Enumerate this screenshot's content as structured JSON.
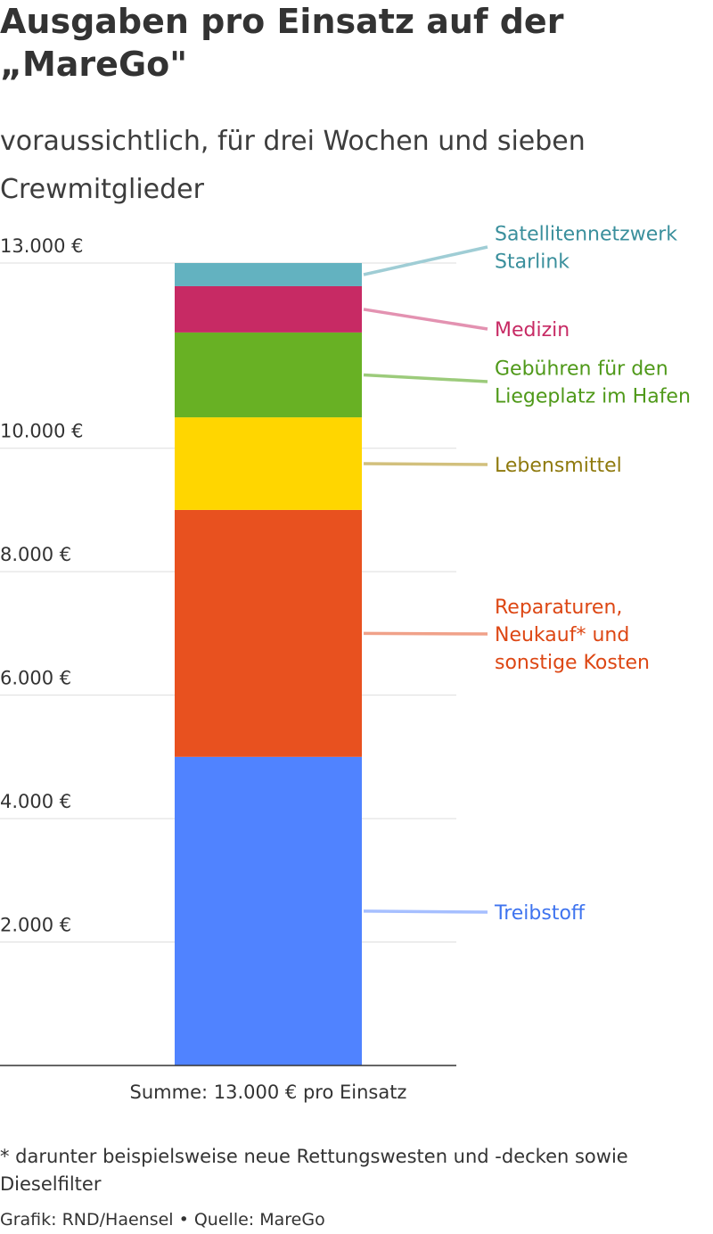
{
  "title_lines": [
    "Ausgaben pro Einsatz auf der",
    "„MareGo\""
  ],
  "subtitle": "voraussichtlich, für drei Wochen und sieben Crewmitglieder",
  "chart_data": {
    "type": "bar",
    "stacked": true,
    "categories": [
      "Summe: 13.000 € pro Einsatz"
    ],
    "ylim": [
      0,
      13000
    ],
    "y_ticks": [
      2000,
      4000,
      6000,
      8000,
      10000,
      13000
    ],
    "y_tick_labels": [
      "2.000 €",
      "4.000 €",
      "6.000 €",
      "8.000 €",
      "10.000 €",
      "13.000 €"
    ],
    "grid": true,
    "series": [
      {
        "name": "Treibstoff",
        "label_lines": [
          "Treibstoff"
        ],
        "values": [
          5000
        ],
        "color": "#5083ff",
        "label_color": "#3f74ef",
        "leader_color": "#a6bfff"
      },
      {
        "name": "Reparaturen, Neukauf* und sonstige Kosten",
        "label_lines": [
          "Reparaturen,",
          "Neukauf* und",
          "sonstige Kosten"
        ],
        "values": [
          4000
        ],
        "color": "#e8511f",
        "label_color": "#dd4714",
        "leader_color": "#f0a189"
      },
      {
        "name": "Lebensmittel",
        "label_lines": [
          "Lebensmittel"
        ],
        "values": [
          1500
        ],
        "color": "#ffd600",
        "label_color": "#8f7a0e",
        "leader_color": "#d2c07d"
      },
      {
        "name": "Gebühren für den Liegeplatz im Hafen",
        "label_lines": [
          "Gebühren für den",
          "Liegeplatz im Hafen"
        ],
        "values": [
          1375
        ],
        "color": "#68b124",
        "label_color": "#4f9919",
        "leader_color": "#9ccb7b"
      },
      {
        "name": "Medizin",
        "label_lines": [
          "Medizin"
        ],
        "values": [
          750
        ],
        "color": "#c72a64",
        "label_color": "#c72a64",
        "leader_color": "#e392b1"
      },
      {
        "name": "Satellitennetzwerk Starlink",
        "label_lines": [
          "Satellitennetzwerk",
          "Starlink"
        ],
        "values": [
          375
        ],
        "color": "#63b2c0",
        "label_color": "#3a8f9c",
        "leader_color": "#9fcdd5"
      }
    ]
  },
  "footnote": "* darunter beispielsweise neue Rettungswesten und -decken sowie Dieselfilter",
  "credit": "Grafik: RND/Haensel • Quelle: MareGo"
}
